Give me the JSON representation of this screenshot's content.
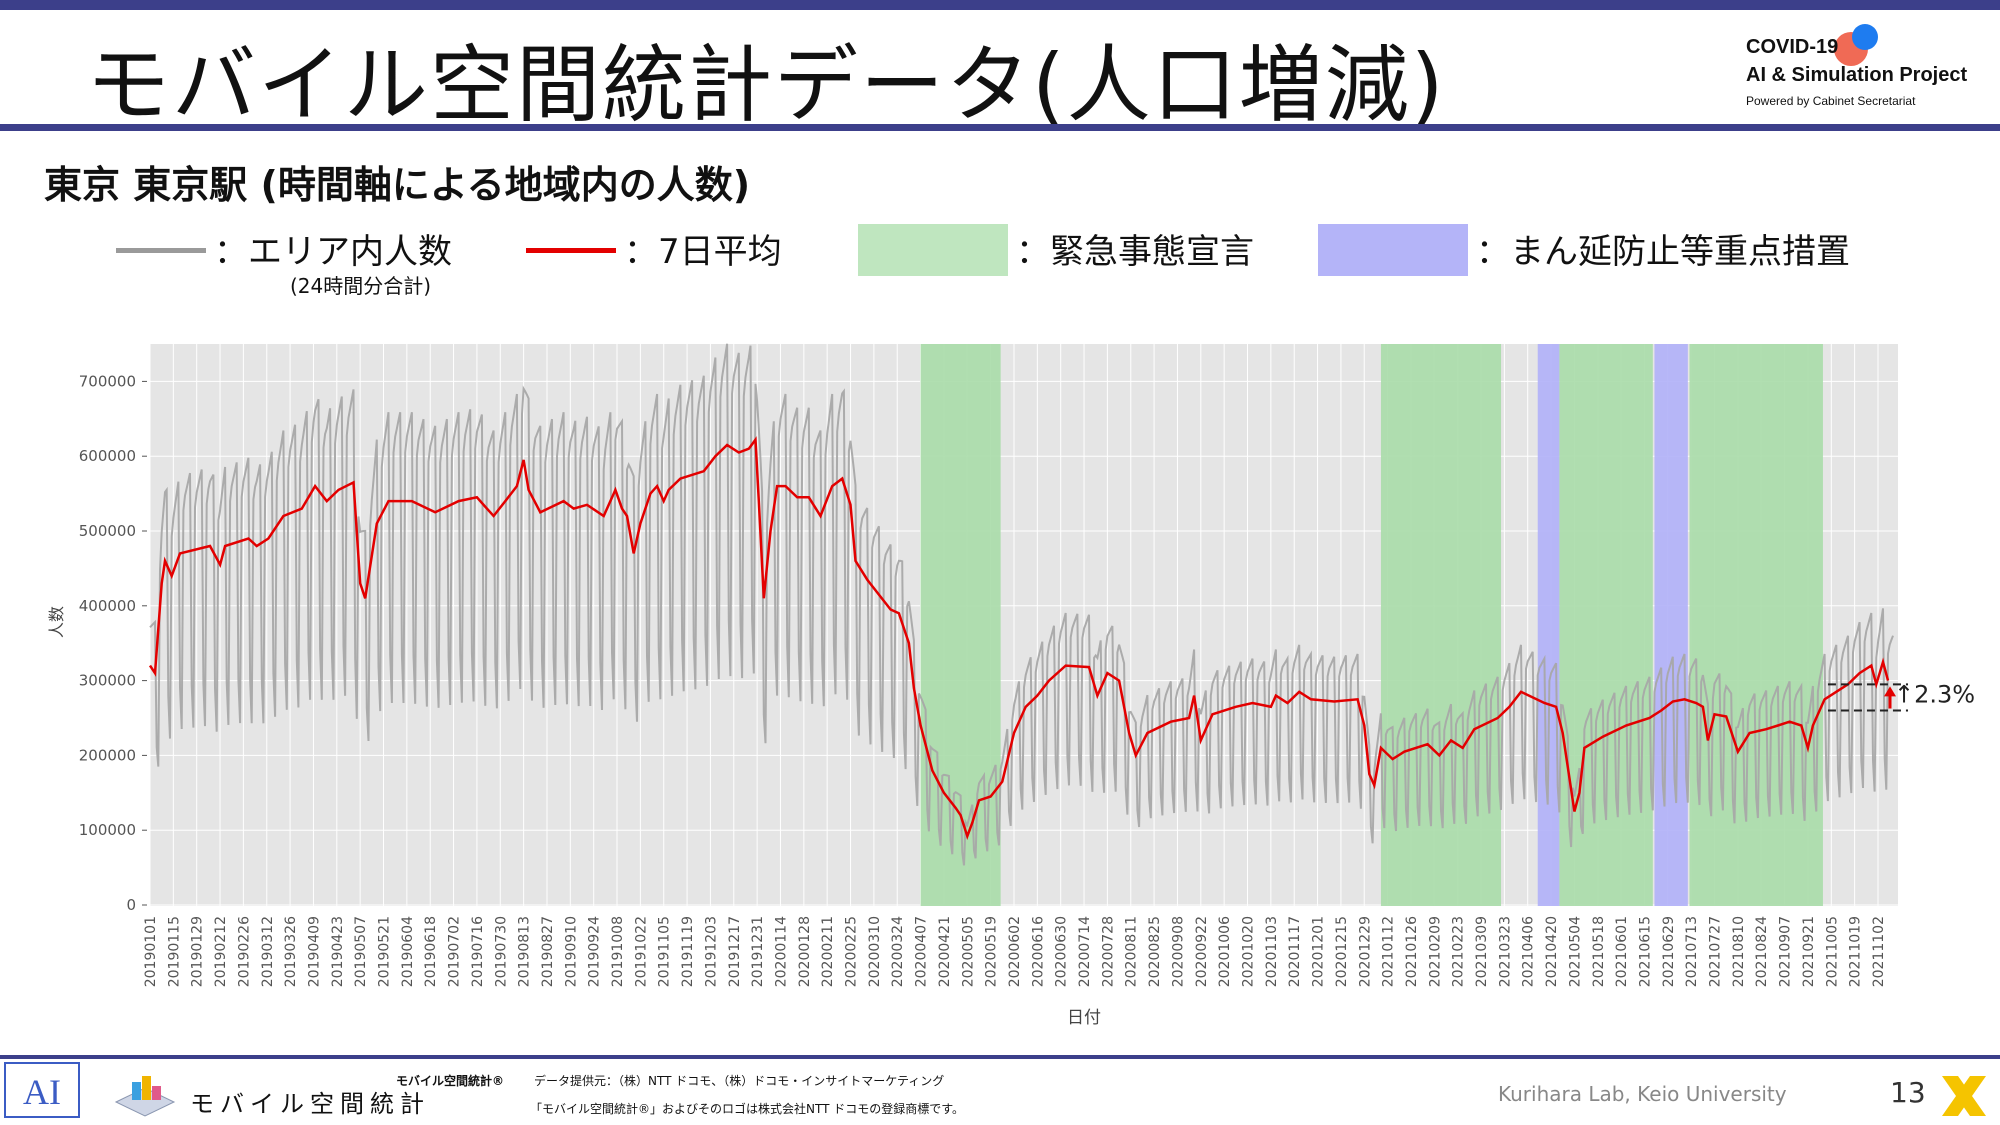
{
  "header": {
    "title": "モバイル空間統計データ(人口増減)",
    "logo_line1": "COVID-19",
    "logo_line2": "AI & Simulation Project",
    "logo_line3": "Powered by Cabinet Secretariat"
  },
  "subtitle": "東京 東京駅 (時間軸による地域内の人数)",
  "legend": {
    "area_label": "：エリア内人数",
    "area_sub": "(24時間分合計)",
    "avg_label": "：7日平均",
    "emergency_label": "：緊急事態宣言",
    "quasi_label": "：まん延防止等重点措置"
  },
  "colors": {
    "raw_line": "#a8a8a8",
    "avg_line": "#e30000",
    "emergency": "#a8dca8",
    "quasi": "#b0b0f8",
    "plot_bg": "#e5e5e5",
    "accent_bar": "#3c3f8a"
  },
  "chart_data": {
    "type": "line",
    "xlabel": "日付",
    "ylabel": "人数",
    "ylim": [
      0,
      750000
    ],
    "yticks": [
      0,
      100000,
      200000,
      300000,
      400000,
      500000,
      600000,
      700000
    ],
    "ytick_labels": [
      "0",
      "100000",
      "200000",
      "300000",
      "400000",
      "500000",
      "600000",
      "700000"
    ],
    "x_start": "2019-01-01",
    "x_end": "2021-11-14",
    "grid": true,
    "xtick_labels": [
      "20190101",
      "20190115",
      "20190129",
      "20190212",
      "20190226",
      "20190312",
      "20190326",
      "20190409",
      "20190423",
      "20190507",
      "20190521",
      "20190604",
      "20190618",
      "20190702",
      "20190716",
      "20190730",
      "20190813",
      "20190827",
      "20190910",
      "20190924",
      "20191008",
      "20191022",
      "20191105",
      "20191119",
      "20191203",
      "20191217",
      "20191231",
      "20200114",
      "20200128",
      "20200211",
      "20200225",
      "20200310",
      "20200324",
      "20200407",
      "20200421",
      "20200505",
      "20200519",
      "20200602",
      "20200616",
      "20200630",
      "20200714",
      "20200728",
      "20200811",
      "20200825",
      "20200908",
      "20200922",
      "20201006",
      "20201020",
      "20201103",
      "20201117",
      "20201201",
      "20201215",
      "20201229",
      "20210112",
      "20210126",
      "20210209",
      "20210223",
      "20210309",
      "20210323",
      "20210406",
      "20210420",
      "20210504",
      "20210518",
      "20210601",
      "20210615",
      "20210629",
      "20210713",
      "20210727",
      "20210810",
      "20210824",
      "20210907",
      "20210921",
      "20211005",
      "20211019",
      "20211102"
    ],
    "series": [],
    "avg_anchors": [
      [
        "2019-01-01",
        320000
      ],
      [
        "2019-01-04",
        310000
      ],
      [
        "2019-01-08",
        430000
      ],
      [
        "2019-01-10",
        460000
      ],
      [
        "2019-01-14",
        440000
      ],
      [
        "2019-01-19",
        470000
      ],
      [
        "2019-02-06",
        480000
      ],
      [
        "2019-02-12",
        455000
      ],
      [
        "2019-02-15",
        480000
      ],
      [
        "2019-03-01",
        490000
      ],
      [
        "2019-03-06",
        480000
      ],
      [
        "2019-03-13",
        490000
      ],
      [
        "2019-03-22",
        520000
      ],
      [
        "2019-04-02",
        530000
      ],
      [
        "2019-04-10",
        560000
      ],
      [
        "2019-04-17",
        540000
      ],
      [
        "2019-04-24",
        555000
      ],
      [
        "2019-05-03",
        565000
      ],
      [
        "2019-05-07",
        430000
      ],
      [
        "2019-05-10",
        410000
      ],
      [
        "2019-05-17",
        510000
      ],
      [
        "2019-05-24",
        540000
      ],
      [
        "2019-06-07",
        540000
      ],
      [
        "2019-06-21",
        525000
      ],
      [
        "2019-07-05",
        540000
      ],
      [
        "2019-07-16",
        545000
      ],
      [
        "2019-07-22",
        530000
      ],
      [
        "2019-07-26",
        520000
      ],
      [
        "2019-08-02",
        540000
      ],
      [
        "2019-08-09",
        560000
      ],
      [
        "2019-08-13",
        595000
      ],
      [
        "2019-08-16",
        555000
      ],
      [
        "2019-08-23",
        525000
      ],
      [
        "2019-09-06",
        540000
      ],
      [
        "2019-09-12",
        530000
      ],
      [
        "2019-09-20",
        535000
      ],
      [
        "2019-09-30",
        520000
      ],
      [
        "2019-10-07",
        555000
      ],
      [
        "2019-10-11",
        530000
      ],
      [
        "2019-10-14",
        520000
      ],
      [
        "2019-10-18",
        470000
      ],
      [
        "2019-10-22",
        510000
      ],
      [
        "2019-10-28",
        550000
      ],
      [
        "2019-11-01",
        560000
      ],
      [
        "2019-11-05",
        540000
      ],
      [
        "2019-11-08",
        555000
      ],
      [
        "2019-11-15",
        570000
      ],
      [
        "2019-11-29",
        580000
      ],
      [
        "2019-12-06",
        600000
      ],
      [
        "2019-12-13",
        615000
      ],
      [
        "2019-12-20",
        605000
      ],
      [
        "2019-12-26",
        610000
      ],
      [
        "2019-12-30",
        622000
      ],
      [
        "2020-01-01",
        540000
      ],
      [
        "2020-01-04",
        410000
      ],
      [
        "2020-01-08",
        500000
      ],
      [
        "2020-01-12",
        560000
      ],
      [
        "2020-01-17",
        560000
      ],
      [
        "2020-01-24",
        545000
      ],
      [
        "2020-01-31",
        545000
      ],
      [
        "2020-02-07",
        520000
      ],
      [
        "2020-02-14",
        560000
      ],
      [
        "2020-02-20",
        570000
      ],
      [
        "2020-02-25",
        535000
      ],
      [
        "2020-02-28",
        460000
      ],
      [
        "2020-03-06",
        435000
      ],
      [
        "2020-03-13",
        415000
      ],
      [
        "2020-03-20",
        395000
      ],
      [
        "2020-03-25",
        390000
      ],
      [
        "2020-03-31",
        350000
      ],
      [
        "2020-04-03",
        290000
      ],
      [
        "2020-04-07",
        240000
      ],
      [
        "2020-04-14",
        180000
      ],
      [
        "2020-04-21",
        150000
      ],
      [
        "2020-04-28",
        130000
      ],
      [
        "2020-05-01",
        120000
      ],
      [
        "2020-05-05",
        92000
      ],
      [
        "2020-05-08",
        110000
      ],
      [
        "2020-05-12",
        140000
      ],
      [
        "2020-05-19",
        145000
      ],
      [
        "2020-05-26",
        165000
      ],
      [
        "2020-06-02",
        230000
      ],
      [
        "2020-06-09",
        265000
      ],
      [
        "2020-06-16",
        280000
      ],
      [
        "2020-06-23",
        300000
      ],
      [
        "2020-07-03",
        320000
      ],
      [
        "2020-07-17",
        318000
      ],
      [
        "2020-07-22",
        280000
      ],
      [
        "2020-07-28",
        310000
      ],
      [
        "2020-08-04",
        300000
      ],
      [
        "2020-08-10",
        230000
      ],
      [
        "2020-08-14",
        200000
      ],
      [
        "2020-08-21",
        230000
      ],
      [
        "2020-09-04",
        245000
      ],
      [
        "2020-09-15",
        250000
      ],
      [
        "2020-09-18",
        280000
      ],
      [
        "2020-09-22",
        220000
      ],
      [
        "2020-09-29",
        255000
      ],
      [
        "2020-10-13",
        265000
      ],
      [
        "2020-10-23",
        270000
      ],
      [
        "2020-11-03",
        265000
      ],
      [
        "2020-11-06",
        280000
      ],
      [
        "2020-11-13",
        270000
      ],
      [
        "2020-11-20",
        285000
      ],
      [
        "2020-11-27",
        275000
      ],
      [
        "2020-12-11",
        272000
      ],
      [
        "2020-12-25",
        275000
      ],
      [
        "2020-12-29",
        240000
      ],
      [
        "2021-01-01",
        175000
      ],
      [
        "2021-01-04",
        160000
      ],
      [
        "2021-01-08",
        210000
      ],
      [
        "2021-01-15",
        195000
      ],
      [
        "2021-01-22",
        205000
      ],
      [
        "2021-02-05",
        215000
      ],
      [
        "2021-02-12",
        200000
      ],
      [
        "2021-02-19",
        220000
      ],
      [
        "2021-02-26",
        210000
      ],
      [
        "2021-03-05",
        235000
      ],
      [
        "2021-03-19",
        250000
      ],
      [
        "2021-03-26",
        265000
      ],
      [
        "2021-04-02",
        285000
      ],
      [
        "2021-04-16",
        270000
      ],
      [
        "2021-04-23",
        265000
      ],
      [
        "2021-04-27",
        230000
      ],
      [
        "2021-05-01",
        170000
      ],
      [
        "2021-05-04",
        125000
      ],
      [
        "2021-05-07",
        150000
      ],
      [
        "2021-05-10",
        210000
      ],
      [
        "2021-05-21",
        225000
      ],
      [
        "2021-06-04",
        240000
      ],
      [
        "2021-06-18",
        250000
      ],
      [
        "2021-06-25",
        260000
      ],
      [
        "2021-07-02",
        272000
      ],
      [
        "2021-07-09",
        275000
      ],
      [
        "2021-07-16",
        270000
      ],
      [
        "2021-07-20",
        265000
      ],
      [
        "2021-07-23",
        220000
      ],
      [
        "2021-07-27",
        255000
      ],
      [
        "2021-08-03",
        252000
      ],
      [
        "2021-08-10",
        205000
      ],
      [
        "2021-08-17",
        230000
      ],
      [
        "2021-08-27",
        235000
      ],
      [
        "2021-09-03",
        240000
      ],
      [
        "2021-09-10",
        245000
      ],
      [
        "2021-09-17",
        240000
      ],
      [
        "2021-09-21",
        210000
      ],
      [
        "2021-09-24",
        240000
      ],
      [
        "2021-10-01",
        275000
      ],
      [
        "2021-10-08",
        285000
      ],
      [
        "2021-10-15",
        295000
      ],
      [
        "2021-10-22",
        310000
      ],
      [
        "2021-10-29",
        320000
      ],
      [
        "2021-11-01",
        295000
      ],
      [
        "2021-11-05",
        325000
      ],
      [
        "2021-11-08",
        300000
      ]
    ],
    "raw_amplitude_ratio": 0.55,
    "spans": [
      {
        "kind": "emergency",
        "start": "2020-04-07",
        "end": "2020-05-25"
      },
      {
        "kind": "emergency",
        "start": "2021-01-08",
        "end": "2021-03-21"
      },
      {
        "kind": "quasi",
        "start": "2021-04-12",
        "end": "2021-04-25"
      },
      {
        "kind": "emergency",
        "start": "2021-04-25",
        "end": "2021-06-20"
      },
      {
        "kind": "quasi",
        "start": "2021-06-21",
        "end": "2021-07-11"
      },
      {
        "kind": "emergency",
        "start": "2021-07-12",
        "end": "2021-09-30"
      }
    ],
    "annotation": {
      "text": "↑2.3%",
      "upper": 295000,
      "lower": 260000,
      "x_from": "2021-10-03",
      "x_to": "2021-11-20"
    }
  },
  "footer": {
    "brand_text": "モバイル空間統計",
    "trademark_name": "モバイル空間統計®",
    "source": "データ提供元：（株）NTT ドコモ、（株）ドコモ・インサイトマーケティング",
    "notice": "「モバイル空間統計®」およびそのロゴは株式会社NTT ドコモの登録商標です。",
    "lab": "Kurihara Lab, Keio University",
    "page_number": "13"
  }
}
